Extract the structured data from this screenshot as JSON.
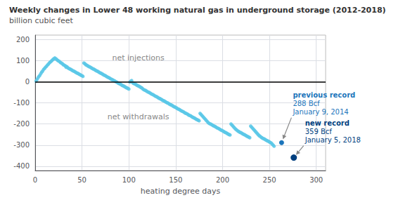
{
  "chart_data": {
    "type": "scatter",
    "title": "Weekly changes in Lower 48 working natural gas in underground storage (2012-2018)",
    "subtitle": "billion cubic feet",
    "xlabel": "heating degree days",
    "xlim": [
      0,
      310
    ],
    "ylim": [
      -420,
      220
    ],
    "xticks": [
      0,
      50,
      100,
      150,
      200,
      250,
      300
    ],
    "yticks": [
      -400,
      -300,
      -200,
      -100,
      0,
      100,
      200
    ],
    "grid": true,
    "annotations": [
      "net injections",
      "net withdrawals"
    ],
    "series": [
      {
        "type": "scatter",
        "color": "#5BC8E8",
        "values": [
          [
            1,
            2
          ],
          [
            2,
            10
          ],
          [
            3,
            18
          ],
          [
            4,
            25
          ],
          [
            5,
            30
          ],
          [
            6,
            38
          ],
          [
            7,
            45
          ],
          [
            8,
            50
          ],
          [
            9,
            58
          ],
          [
            10,
            62
          ],
          [
            11,
            68
          ],
          [
            12,
            72
          ],
          [
            13,
            78
          ],
          [
            14,
            82
          ],
          [
            15,
            88
          ],
          [
            16,
            92
          ],
          [
            17,
            96
          ],
          [
            18,
            100
          ],
          [
            19,
            105
          ],
          [
            20,
            108
          ],
          [
            21,
            112
          ],
          [
            22,
            108
          ],
          [
            23,
            105
          ],
          [
            24,
            100
          ],
          [
            25,
            98
          ],
          [
            26,
            95
          ],
          [
            27,
            90
          ],
          [
            28,
            88
          ],
          [
            29,
            85
          ],
          [
            30,
            80
          ],
          [
            31,
            78
          ],
          [
            32,
            75
          ],
          [
            33,
            72
          ],
          [
            33,
            68
          ],
          [
            34,
            70
          ],
          [
            35,
            65
          ],
          [
            36,
            62
          ],
          [
            37,
            60
          ],
          [
            38,
            58
          ],
          [
            39,
            55
          ],
          [
            40,
            52
          ],
          [
            41,
            50
          ],
          [
            42,
            48
          ],
          [
            43,
            45
          ],
          [
            44,
            42
          ],
          [
            45,
            40
          ],
          [
            46,
            38
          ],
          [
            47,
            35
          ],
          [
            48,
            33
          ],
          [
            49,
            30
          ],
          [
            50,
            28
          ],
          [
            51,
            25
          ],
          [
            52,
            88
          ],
          [
            53,
            85
          ],
          [
            54,
            80
          ],
          [
            55,
            78
          ],
          [
            56,
            75
          ],
          [
            57,
            72
          ],
          [
            58,
            70
          ],
          [
            59,
            68
          ],
          [
            60,
            65
          ],
          [
            61,
            62
          ],
          [
            62,
            60
          ],
          [
            63,
            58
          ],
          [
            64,
            55
          ],
          [
            65,
            52
          ],
          [
            66,
            50
          ],
          [
            67,
            48
          ],
          [
            68,
            45
          ],
          [
            69,
            42
          ],
          [
            70,
            40
          ],
          [
            71,
            38
          ],
          [
            72,
            35
          ],
          [
            73,
            32
          ],
          [
            74,
            30
          ],
          [
            75,
            28
          ],
          [
            76,
            25
          ],
          [
            77,
            22
          ],
          [
            78,
            20
          ],
          [
            79,
            18
          ],
          [
            80,
            15
          ],
          [
            81,
            12
          ],
          [
            82,
            10
          ],
          [
            83,
            8
          ],
          [
            84,
            5
          ],
          [
            85,
            3
          ],
          [
            86,
            0
          ],
          [
            87,
            -2
          ],
          [
            88,
            -5
          ],
          [
            89,
            -8
          ],
          [
            90,
            -10
          ],
          [
            91,
            -12
          ],
          [
            92,
            -15
          ],
          [
            93,
            -18
          ],
          [
            94,
            -20
          ],
          [
            95,
            -22
          ],
          [
            96,
            -25
          ],
          [
            97,
            -28
          ],
          [
            98,
            -30
          ],
          [
            99,
            -32
          ],
          [
            100,
            -35
          ],
          [
            101,
            -2
          ],
          [
            102,
            2
          ],
          [
            103,
            5
          ],
          [
            104,
            -5
          ],
          [
            105,
            -8
          ],
          [
            106,
            -10
          ],
          [
            107,
            -12
          ],
          [
            108,
            -15
          ],
          [
            109,
            -18
          ],
          [
            110,
            -20
          ],
          [
            111,
            -22
          ],
          [
            112,
            -25
          ],
          [
            113,
            -28
          ],
          [
            114,
            -30
          ],
          [
            115,
            -35
          ],
          [
            116,
            -38
          ],
          [
            117,
            -40
          ],
          [
            118,
            -42
          ],
          [
            119,
            -45
          ],
          [
            120,
            -48
          ],
          [
            121,
            -50
          ],
          [
            122,
            -52
          ],
          [
            123,
            -55
          ],
          [
            124,
            -58
          ],
          [
            125,
            -60
          ],
          [
            126,
            -62
          ],
          [
            127,
            -65
          ],
          [
            128,
            -68
          ],
          [
            129,
            -70
          ],
          [
            130,
            -72
          ],
          [
            131,
            -75
          ],
          [
            132,
            -78
          ],
          [
            133,
            -80
          ],
          [
            134,
            -82
          ],
          [
            135,
            -85
          ],
          [
            136,
            -88
          ],
          [
            137,
            -90
          ],
          [
            138,
            -92
          ],
          [
            139,
            -95
          ],
          [
            140,
            -98
          ],
          [
            141,
            -100
          ],
          [
            142,
            -102
          ],
          [
            143,
            -105
          ],
          [
            144,
            -108
          ],
          [
            145,
            -110
          ],
          [
            146,
            -112
          ],
          [
            147,
            -115
          ],
          [
            148,
            -118
          ],
          [
            149,
            -120
          ],
          [
            150,
            -122
          ],
          [
            151,
            -125
          ],
          [
            152,
            -128
          ],
          [
            153,
            -130
          ],
          [
            154,
            -132
          ],
          [
            155,
            -135
          ],
          [
            156,
            -138
          ],
          [
            157,
            -140
          ],
          [
            158,
            -142
          ],
          [
            159,
            -145
          ],
          [
            160,
            -148
          ],
          [
            161,
            -150
          ],
          [
            162,
            -152
          ],
          [
            163,
            -155
          ],
          [
            164,
            -158
          ],
          [
            165,
            -160
          ],
          [
            166,
            -162
          ],
          [
            167,
            -165
          ],
          [
            168,
            -168
          ],
          [
            169,
            -170
          ],
          [
            170,
            -172
          ],
          [
            171,
            -175
          ],
          [
            172,
            -178
          ],
          [
            173,
            -180
          ],
          [
            174,
            -182
          ],
          [
            175,
            -185
          ],
          [
            176,
            -150
          ],
          [
            177,
            -155
          ],
          [
            178,
            -160
          ],
          [
            179,
            -165
          ],
          [
            180,
            -170
          ],
          [
            181,
            -175
          ],
          [
            182,
            -180
          ],
          [
            183,
            -185
          ],
          [
            184,
            -190
          ],
          [
            185,
            -195
          ],
          [
            186,
            -198
          ],
          [
            187,
            -200
          ],
          [
            188,
            -202
          ],
          [
            189,
            -205
          ],
          [
            190,
            -208
          ],
          [
            191,
            -210
          ],
          [
            192,
            -212
          ],
          [
            193,
            -215
          ],
          [
            194,
            -218
          ],
          [
            195,
            -220
          ],
          [
            196,
            -222
          ],
          [
            197,
            -225
          ],
          [
            198,
            -228
          ],
          [
            199,
            -230
          ],
          [
            200,
            -232
          ],
          [
            201,
            -235
          ],
          [
            202,
            -238
          ],
          [
            203,
            -240
          ],
          [
            204,
            -242
          ],
          [
            205,
            -245
          ],
          [
            206,
            -248
          ],
          [
            207,
            -250
          ],
          [
            208,
            -252
          ],
          [
            209,
            -200
          ],
          [
            210,
            -205
          ],
          [
            211,
            -210
          ],
          [
            212,
            -215
          ],
          [
            213,
            -220
          ],
          [
            214,
            -225
          ],
          [
            215,
            -228
          ],
          [
            216,
            -232
          ],
          [
            217,
            -235
          ],
          [
            218,
            -238
          ],
          [
            219,
            -240
          ],
          [
            220,
            -242
          ],
          [
            221,
            -245
          ],
          [
            222,
            -248
          ],
          [
            223,
            -250
          ],
          [
            224,
            -252
          ],
          [
            225,
            -255
          ],
          [
            226,
            -258
          ],
          [
            227,
            -260
          ],
          [
            228,
            -262
          ],
          [
            229,
            -265
          ],
          [
            230,
            -210
          ],
          [
            231,
            -215
          ],
          [
            232,
            -220
          ],
          [
            233,
            -225
          ],
          [
            234,
            -230
          ],
          [
            235,
            -235
          ],
          [
            236,
            -240
          ],
          [
            237,
            -245
          ],
          [
            238,
            -250
          ],
          [
            239,
            -255
          ],
          [
            240,
            -258
          ],
          [
            241,
            -262
          ],
          [
            242,
            -265
          ],
          [
            243,
            -268
          ],
          [
            244,
            -270
          ],
          [
            245,
            -272
          ],
          [
            246,
            -275
          ],
          [
            247,
            -278
          ],
          [
            248,
            -280
          ],
          [
            249,
            -282
          ],
          [
            250,
            -285
          ],
          [
            251,
            -288
          ],
          [
            252,
            -290
          ],
          [
            253,
            -295
          ],
          [
            254,
            -300
          ],
          [
            255,
            -305
          ]
        ]
      },
      {
        "type": "scatter",
        "color": "#1B75BB",
        "values": [
          [
            263,
            -288
          ]
        ],
        "annotation": [
          "previous record",
          "288 Bcf",
          "January 9, 2014"
        ]
      },
      {
        "type": "scatter",
        "color": "#003F7F",
        "values": [
          [
            276,
            -359
          ]
        ],
        "annotation": [
          "new record",
          "359 Bcf",
          "January 5, 2018"
        ]
      },
      {
        "type": "hline",
        "color": "#000000",
        "y": 0
      }
    ]
  }
}
